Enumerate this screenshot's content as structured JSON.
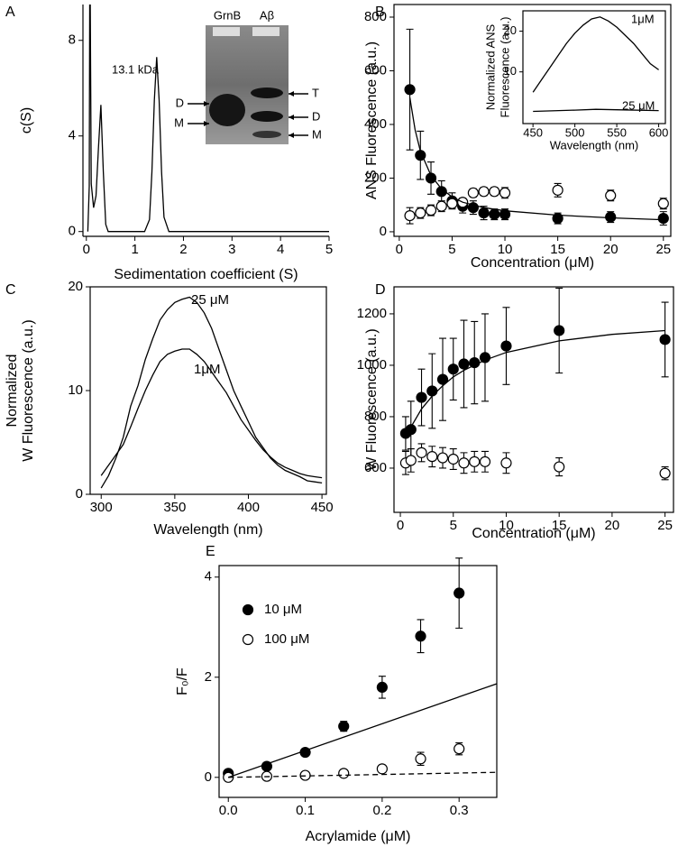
{
  "chart_data": [
    {
      "type": "line",
      "panel": "A",
      "x_label": "Sedimentation coefficient (S)",
      "y_label": "c(S)",
      "xlim": [
        -0.07,
        5
      ],
      "ylim": [
        -0.2,
        9.5
      ],
      "xticks": [
        0,
        1,
        2,
        3,
        4,
        5
      ],
      "yticks": [
        0,
        4,
        8
      ],
      "series": [
        {
          "color": "#000000",
          "x": [
            0.03,
            0.06,
            0.07,
            0.08,
            0.1,
            0.15,
            0.2,
            0.25,
            0.3,
            0.35,
            0.4,
            0.45,
            1.2,
            1.3,
            1.35,
            1.4,
            1.45,
            1.5,
            1.55,
            1.6,
            1.7,
            5
          ],
          "values": [
            0,
            1.9,
            9.5,
            9.5,
            2,
            1.0,
            1.5,
            3.5,
            5.3,
            2.5,
            0.3,
            0,
            0,
            0.5,
            2.5,
            5.5,
            7.3,
            5.5,
            2.5,
            0.6,
            0,
            0
          ]
        }
      ],
      "annotations": [
        "13.1 kDa"
      ],
      "gel": {
        "lanes": [
          "GrnB",
          "Aβ"
        ],
        "left_markers": [
          "D",
          "M"
        ],
        "right_markers": [
          "T",
          "D",
          "M"
        ]
      }
    },
    {
      "type": "scatter",
      "panel": "B",
      "x_label": "Concentration (μM)",
      "y_label": "ANS Fluorescence (a.u.)",
      "xlim": [
        -0.5,
        25.7
      ],
      "ylim": [
        -17,
        847
      ],
      "xticks": [
        0,
        5,
        10,
        15,
        20,
        25
      ],
      "yticks": [
        0,
        200,
        400,
        600,
        800
      ],
      "series": [
        {
          "mode": "scatter",
          "marker": "filled",
          "color": "#000000",
          "x": [
            1,
            2,
            3,
            4,
            5,
            6,
            7,
            8,
            9,
            10,
            15,
            20,
            25
          ],
          "values": [
            530,
            285,
            200,
            150,
            115,
            95,
            90,
            70,
            65,
            65,
            50,
            55,
            50
          ],
          "errors": [
            225,
            90,
            60,
            40,
            30,
            25,
            25,
            25,
            20,
            20,
            20,
            20,
            25
          ]
        },
        {
          "mode": "scatter",
          "marker": "open",
          "color": "#000000",
          "x": [
            1,
            2,
            3,
            4,
            5,
            6,
            7,
            8,
            9,
            10,
            15,
            20,
            25
          ],
          "values": [
            60,
            70,
            80,
            95,
            105,
            110,
            145,
            150,
            150,
            145,
            155,
            135,
            105
          ],
          "errors": [
            30,
            20,
            20,
            20,
            15,
            15,
            15,
            15,
            15,
            20,
            25,
            20,
            20
          ]
        },
        {
          "mode": "line",
          "color": "#000000",
          "x": [
            1,
            1.5,
            2,
            3,
            4,
            5,
            6,
            8,
            10,
            15,
            20,
            25
          ],
          "values": [
            500,
            380,
            300,
            210,
            160,
            130,
            110,
            90,
            78,
            62,
            52,
            45
          ]
        }
      ]
    },
    {
      "type": "line",
      "x_label": "Wavelength (nm)",
      "y_label": [
        "Normalized ANS",
        "Fluorescence (a.u.)"
      ],
      "xlim": [
        438,
        608
      ],
      "ylim": [
        -2.7,
        25
      ],
      "xticks": [
        450,
        500,
        550,
        600
      ],
      "yticks": [
        10,
        20
      ],
      "series": [
        {
          "name": "1μM",
          "color": "#000000",
          "x": [
            450,
            460,
            470,
            480,
            490,
            500,
            510,
            520,
            530,
            540,
            550,
            560,
            570,
            580,
            590,
            600
          ],
          "values": [
            5,
            8,
            11,
            14,
            17,
            19.5,
            21.5,
            23,
            23.5,
            22.5,
            21,
            19,
            17,
            14.5,
            12,
            10.5
          ]
        },
        {
          "name": "25 μM",
          "color": "#000000",
          "x": [
            450,
            500,
            525,
            550,
            600
          ],
          "values": [
            0.3,
            0.6,
            0.8,
            0.7,
            0.5
          ]
        }
      ]
    },
    {
      "type": "line",
      "panel": "C",
      "x_label": "Wavelength (nm)",
      "y_label": [
        "Normalized",
        "W Fluorescence (a.u.)"
      ],
      "xlim": [
        292.5,
        453
      ],
      "ylim": [
        0,
        20
      ],
      "xticks": [
        300,
        350,
        400,
        450
      ],
      "yticks": [
        0,
        10,
        20
      ],
      "series": [
        {
          "name": "25 μM",
          "color": "#000000",
          "x": [
            300,
            305,
            310,
            315,
            320,
            325,
            330,
            335,
            340,
            345,
            350,
            355,
            360,
            365,
            370,
            375,
            380,
            385,
            390,
            395,
            400,
            405,
            410,
            415,
            420,
            425,
            430,
            435,
            440,
            445,
            450
          ],
          "values": [
            0.6,
            1.8,
            3.5,
            5.5,
            8.5,
            10.5,
            13,
            15,
            16.8,
            17.8,
            18.5,
            18.8,
            19,
            18.5,
            17.5,
            16,
            14,
            12,
            10,
            8.5,
            7,
            5.5,
            4.5,
            3.5,
            2.8,
            2.3,
            2,
            1.7,
            1.3,
            1.2,
            1.1
          ]
        },
        {
          "name": "1μM",
          "color": "#000000",
          "x": [
            300,
            305,
            310,
            315,
            320,
            325,
            330,
            335,
            340,
            345,
            350,
            355,
            360,
            365,
            370,
            375,
            380,
            385,
            390,
            395,
            400,
            405,
            410,
            415,
            420,
            425,
            430,
            435,
            440,
            445,
            450
          ],
          "values": [
            1.8,
            2.8,
            3.8,
            4.8,
            6.5,
            8.3,
            10,
            11.5,
            12.8,
            13.5,
            13.8,
            14,
            14,
            13.5,
            12.8,
            11.8,
            10.8,
            9.8,
            8.5,
            7.2,
            6.2,
            5.2,
            4.3,
            3.6,
            3,
            2.6,
            2.3,
            2,
            1.8,
            1.7,
            1.6
          ]
        }
      ]
    },
    {
      "type": "scatter",
      "panel": "D",
      "x_label": "Concentration (μM)",
      "y_label": "W Fluorescence (a.u.)",
      "xlim": [
        -0.6,
        25.8
      ],
      "ylim": [
        428,
        1305
      ],
      "xticks": [
        0,
        5,
        10,
        15,
        20,
        25
      ],
      "yticks": [
        600,
        800,
        1000,
        1200
      ],
      "series": [
        {
          "mode": "scatter",
          "marker": "filled",
          "color": "#000000",
          "x": [
            0.5,
            1,
            2,
            3,
            4,
            5,
            6,
            7,
            8,
            10,
            15,
            25
          ],
          "values": [
            735,
            750,
            875,
            900,
            945,
            985,
            1005,
            1010,
            1030,
            1075,
            1135,
            1100
          ],
          "errors": [
            65,
            110,
            110,
            145,
            160,
            120,
            170,
            160,
            170,
            150,
            165,
            145
          ]
        },
        {
          "mode": "scatter",
          "marker": "open",
          "color": "#000000",
          "x": [
            0.5,
            1,
            2,
            3,
            4,
            5,
            6,
            7,
            8,
            10,
            15,
            25
          ],
          "values": [
            620,
            630,
            660,
            645,
            640,
            635,
            620,
            625,
            625,
            620,
            605,
            580
          ],
          "errors": [
            45,
            45,
            35,
            40,
            40,
            40,
            40,
            40,
            40,
            40,
            35,
            25
          ]
        },
        {
          "mode": "line",
          "color": "#000000",
          "x": [
            0.5,
            1,
            2,
            3,
            4,
            5,
            6,
            8,
            10,
            15,
            20,
            25
          ],
          "values": [
            720,
            760,
            830,
            880,
            920,
            955,
            980,
            1020,
            1050,
            1095,
            1120,
            1135
          ]
        }
      ]
    },
    {
      "type": "scatter",
      "panel": "E",
      "x_label": "Acrylamide (μM)",
      "y_label": "F₀/F",
      "legend": "upper left",
      "xlim": [
        -0.012,
        0.349
      ],
      "ylim": [
        -0.4,
        4.23
      ],
      "xticks": [
        {
          "value": 0,
          "label": "0.0"
        },
        0.1,
        0.2,
        0.3
      ],
      "yticks": [
        0,
        2,
        4
      ],
      "series": [
        {
          "name": "10 μM",
          "mode": "scatter",
          "marker": "filled",
          "color": "#000000",
          "x": [
            0,
            0.05,
            0.1,
            0.15,
            0.2,
            0.25,
            0.3
          ],
          "values": [
            0.08,
            0.22,
            0.5,
            1.02,
            1.8,
            2.82,
            3.68
          ],
          "errors": [
            0.05,
            0.06,
            0.05,
            0.1,
            0.22,
            0.33,
            0.7
          ]
        },
        {
          "name": "100 μM",
          "mode": "scatter",
          "marker": "open",
          "color": "#000000",
          "x": [
            0,
            0.05,
            0.1,
            0.15,
            0.2,
            0.25,
            0.3
          ],
          "values": [
            0,
            0.02,
            0.04,
            0.08,
            0.17,
            0.37,
            0.57
          ],
          "errors": [
            0.05,
            0.05,
            0.05,
            0.06,
            0.07,
            0.13,
            0.12
          ]
        },
        {
          "mode": "line",
          "color": "#000000",
          "x": [
            0,
            0.349
          ],
          "values": [
            0,
            1.87
          ]
        },
        {
          "mode": "line",
          "dash": true,
          "color": "#000000",
          "x": [
            0,
            0.349
          ],
          "values": [
            0,
            0.1
          ]
        }
      ]
    }
  ]
}
